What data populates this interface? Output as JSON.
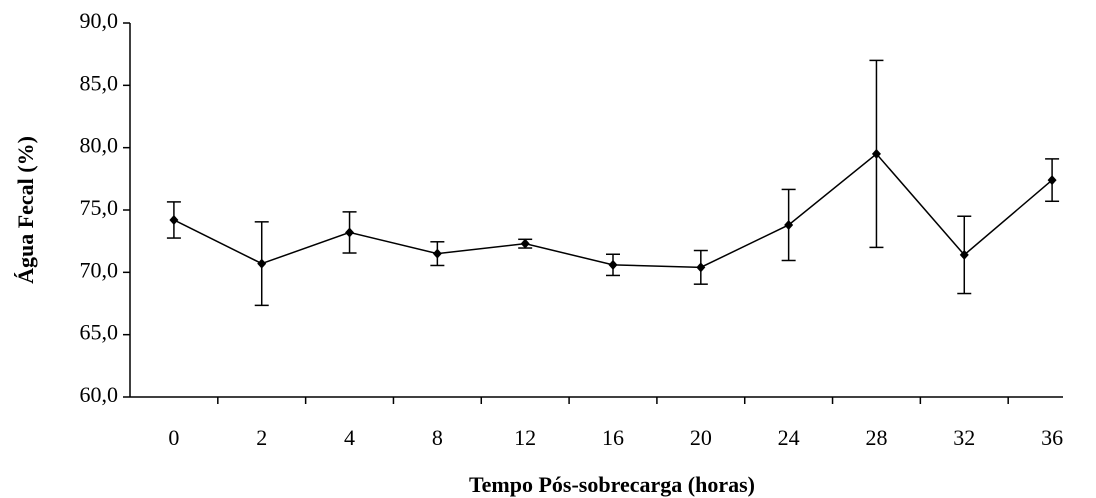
{
  "chart_data": {
    "type": "line",
    "x_label": "Tempo Pós-sobrecarga (horas)",
    "y_label": "Água Fecal (%)",
    "categories": [
      "0",
      "2",
      "4",
      "8",
      "12",
      "16",
      "20",
      "24",
      "28",
      "32",
      "36"
    ],
    "values": [
      74.2,
      70.7,
      73.2,
      71.5,
      72.3,
      70.6,
      70.4,
      73.8,
      79.5,
      71.4,
      77.4
    ],
    "errors": [
      1.45,
      3.35,
      1.65,
      0.95,
      0.35,
      0.85,
      1.35,
      2.85,
      7.5,
      3.1,
      1.7
    ],
    "color": "#000000",
    "ylim": [
      60,
      90
    ],
    "yticks": [
      {
        "value": 60,
        "label": "60,0"
      },
      {
        "value": 65,
        "label": "65,0"
      },
      {
        "value": 70,
        "label": "70,0"
      },
      {
        "value": 75,
        "label": "75,0"
      },
      {
        "value": 80,
        "label": "80,0"
      },
      {
        "value": 85,
        "label": "85,0"
      },
      {
        "value": 90,
        "label": "90,0"
      }
    ],
    "grid": false
  }
}
